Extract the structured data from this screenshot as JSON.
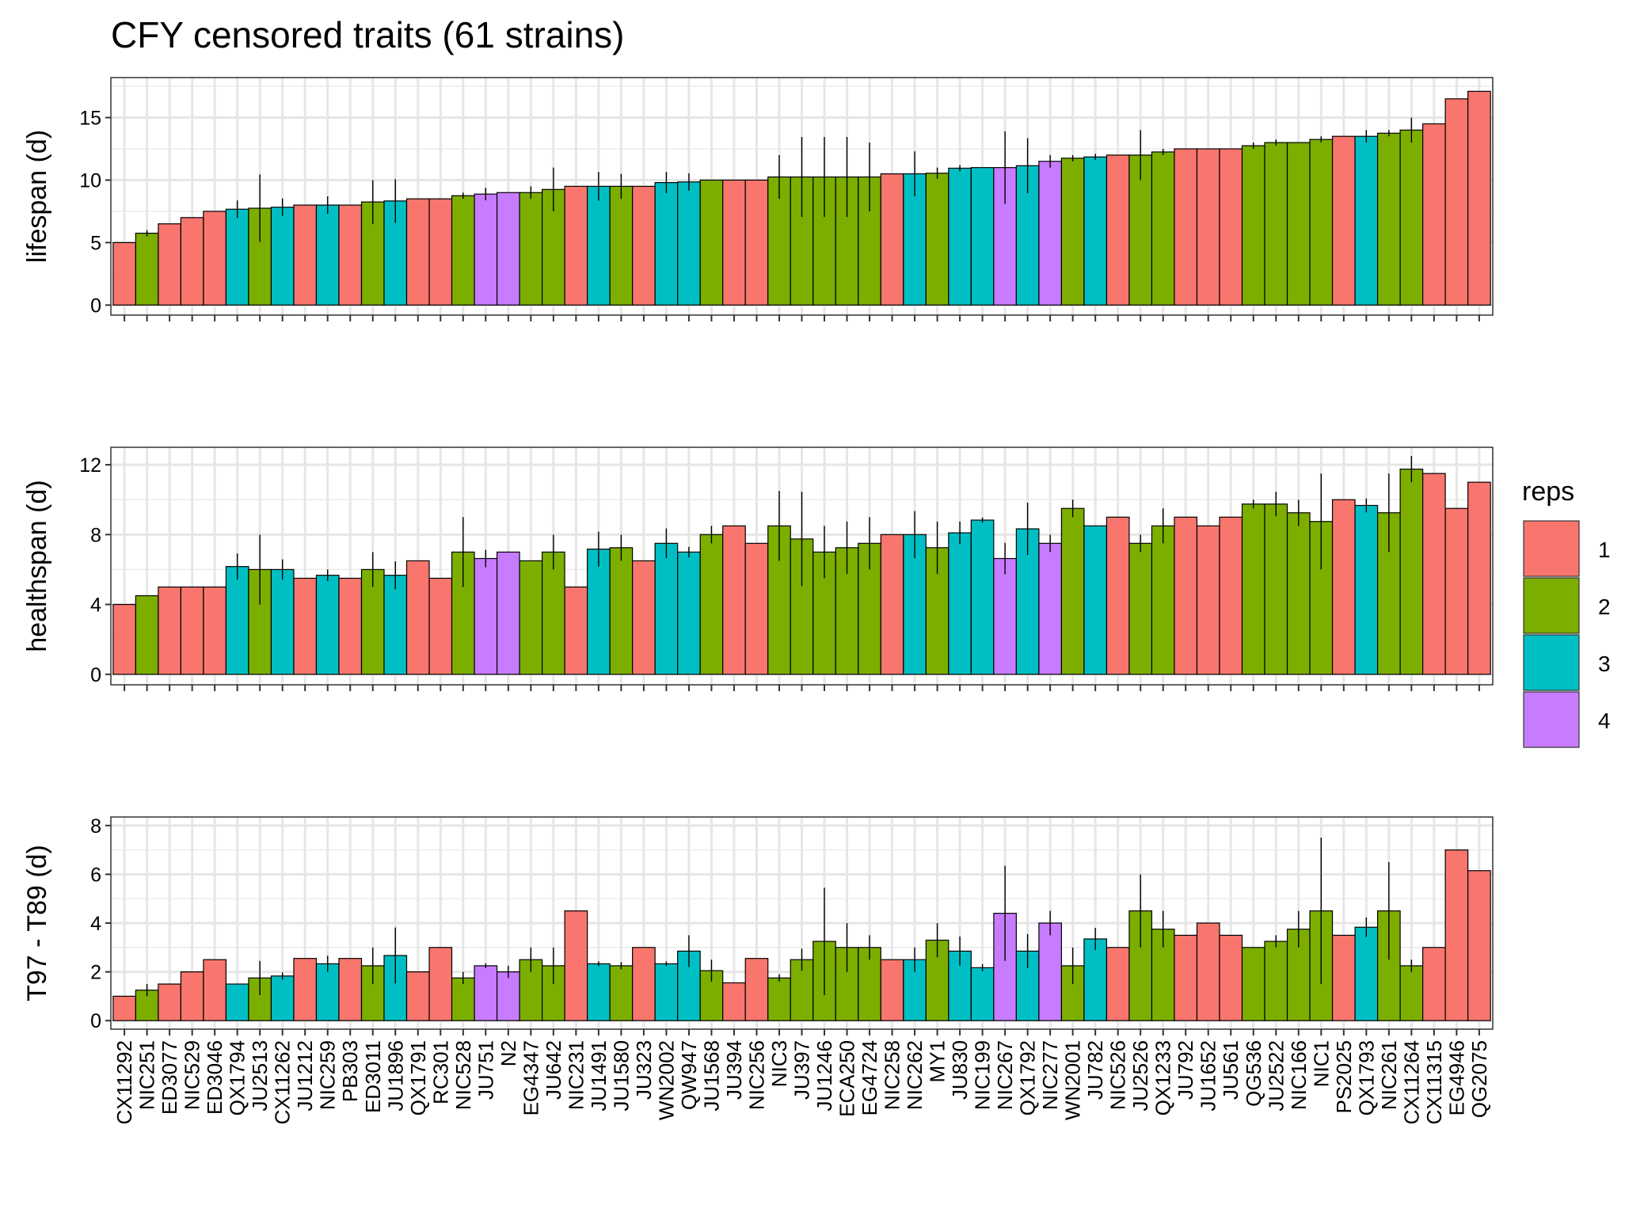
{
  "chart_data": {
    "title": "CFY censored traits (61 strains)",
    "type": "bar",
    "legend": {
      "title": "reps",
      "placement": "right",
      "entries": [
        {
          "label": "1",
          "color": "#F8766D"
        },
        {
          "label": "2",
          "color": "#7CAE00"
        },
        {
          "label": "3",
          "color": "#00BFC4"
        },
        {
          "label": "4",
          "color": "#C77CFF"
        }
      ]
    },
    "grid": true,
    "strains": [
      "CX11292",
      "NIC251",
      "ED3077",
      "NIC529",
      "ED3046",
      "QX1794",
      "JU2513",
      "CX11262",
      "JU1212",
      "NIC259",
      "PB303",
      "ED3011",
      "JU1896",
      "QX1791",
      "RC301",
      "NIC528",
      "JU751",
      "N2",
      "EG4347",
      "JU642",
      "NIC231",
      "JU1491",
      "JU1580",
      "JU323",
      "WN2002",
      "QW947",
      "JU1568",
      "JU394",
      "NIC256",
      "NIC3",
      "JU397",
      "JU1246",
      "ECA250",
      "EG4724",
      "NIC258",
      "NIC262",
      "MY1",
      "JU830",
      "NIC199",
      "NIC267",
      "QX1792",
      "NIC277",
      "WN2001",
      "JU782",
      "NIC526",
      "JU2526",
      "QX1233",
      "JU792",
      "JU1652",
      "JU561",
      "QG536",
      "JU2522",
      "NIC166",
      "NIC1",
      "PS2025",
      "QX1793",
      "NIC261",
      "CX11264",
      "CX11315",
      "EG4946",
      "QG2075"
    ],
    "lifespan_order": [
      "CX11292",
      "NIC251",
      "ED3077",
      "NIC529",
      "ED3046",
      "QX1794",
      "JU2513",
      "CX11262",
      "JU1212",
      "NIC259",
      "PB303",
      "ED3011",
      "JU1896",
      "QX1791",
      "RC301",
      "NIC528",
      "JU751",
      "N2",
      "EG4347",
      "JU642",
      "NIC231",
      "JU1491",
      "JU1580",
      "JU323",
      "WN2002",
      "QW947",
      "JU1568",
      "JU394",
      "NIC256",
      "NIC3",
      "JU397",
      "JU1246",
      "ECA250",
      "EG4724",
      "NIC258",
      "NIC262",
      "MY1",
      "JU830",
      "NIC199",
      "NIC267",
      "QX1792",
      "NIC277",
      "WN2001",
      "JU782",
      "NIC526",
      "JU2526",
      "QX1233",
      "JU792",
      "JU1652",
      "JU561",
      "QG536",
      "JU2522",
      "NIC166",
      "NIC1",
      "PS2025",
      "QX1793",
      "NIC261",
      "CX11264",
      "CX11315",
      "EG4946",
      "QG2075"
    ],
    "reps": [
      1,
      2,
      1,
      1,
      1,
      3,
      2,
      3,
      1,
      3,
      1,
      2,
      3,
      1,
      1,
      2,
      4,
      4,
      2,
      2,
      1,
      3,
      2,
      1,
      3,
      3,
      2,
      1,
      1,
      2,
      2,
      2,
      2,
      2,
      1,
      3,
      2,
      3,
      3,
      4,
      3,
      4,
      2,
      3,
      1,
      2,
      2,
      1,
      1,
      1,
      2,
      2,
      2,
      2,
      1,
      3,
      2,
      2,
      1,
      1,
      1
    ],
    "panels": [
      {
        "ylabel": "lifespan (d)",
        "ylim": [
          -0.8,
          18.2
        ],
        "yticks": [
          0,
          5,
          10,
          15
        ],
        "values": [
          5.0,
          5.75,
          6.5,
          7.0,
          7.5,
          7.67,
          7.75,
          7.83,
          8.0,
          8.0,
          8.0,
          8.25,
          8.33,
          8.5,
          8.5,
          8.75,
          8.88,
          9.0,
          9.0,
          9.25,
          9.5,
          9.5,
          9.5,
          9.5,
          9.8,
          9.85,
          10.0,
          10.0,
          10.0,
          10.25,
          10.25,
          10.25,
          10.25,
          10.25,
          10.5,
          10.5,
          10.55,
          10.95,
          11.0,
          11.0,
          11.15,
          11.5,
          11.75,
          11.85,
          12.0,
          12.0,
          12.25,
          12.5,
          12.5,
          12.5,
          12.75,
          13.0,
          13.0,
          13.25,
          13.5,
          13.5,
          13.75,
          14.0,
          14.5,
          16.5,
          17.1
        ],
        "errors": [
          0,
          0.25,
          0,
          0,
          0,
          0.7,
          2.7,
          0.7,
          0,
          0.7,
          0,
          1.75,
          1.75,
          0,
          0,
          0.25,
          0.5,
          0,
          0.5,
          1.75,
          0,
          1.15,
          1.0,
          0,
          0.85,
          0.7,
          0,
          0,
          0,
          1.75,
          3.2,
          3.2,
          3.2,
          2.75,
          0,
          1.8,
          0.45,
          0.25,
          0,
          2.9,
          2.2,
          0.5,
          0.25,
          0.25,
          0,
          2.0,
          0.25,
          0,
          0,
          0,
          0.25,
          0.25,
          0,
          0.25,
          0,
          0.5,
          0.25,
          1.0,
          0,
          0,
          0
        ]
      },
      {
        "ylabel": "healthspan (d)",
        "ylim": [
          -0.6,
          13.0
        ],
        "yticks": [
          0,
          4,
          8,
          12
        ],
        "values": [
          4.0,
          4.5,
          5.0,
          5.0,
          5.0,
          6.17,
          6.0,
          6.0,
          5.5,
          5.67,
          5.5,
          6.0,
          5.67,
          6.5,
          5.5,
          7.0,
          6.63,
          7.0,
          6.5,
          7.0,
          5.0,
          7.17,
          7.25,
          6.5,
          7.5,
          7.0,
          8.0,
          8.5,
          7.5,
          8.5,
          7.75,
          7.0,
          7.25,
          7.5,
          8.0,
          8.0,
          7.25,
          8.1,
          8.83,
          6.63,
          8.33,
          7.5,
          9.5,
          8.5,
          9.0,
          7.5,
          8.5,
          9.0,
          8.5,
          9.0,
          9.75,
          9.75,
          9.25,
          8.75,
          10.0,
          9.67,
          9.25,
          11.75,
          11.5,
          9.5,
          11.0
        ],
        "errors": [
          0,
          0,
          0,
          0,
          0,
          0.75,
          2.0,
          0.58,
          0,
          0.33,
          0,
          1.0,
          0.8,
          0,
          0,
          2.0,
          0.5,
          0,
          0,
          1.0,
          0,
          1.0,
          0.75,
          0,
          0.85,
          0.3,
          0.5,
          0,
          0,
          2.0,
          2.7,
          1.5,
          1.5,
          1.5,
          0,
          1.35,
          1.5,
          0.65,
          0.15,
          0.9,
          1.5,
          0.5,
          0.5,
          0,
          0,
          0.5,
          1.0,
          0,
          0,
          0,
          0.25,
          0.7,
          0.75,
          2.75,
          0,
          0.4,
          2.25,
          0.75,
          0,
          0,
          0
        ]
      },
      {
        "ylabel": "T97 - T89 (d)",
        "ylim": [
          -0.35,
          8.35
        ],
        "yticks": [
          0,
          2,
          4,
          6,
          8
        ],
        "values": [
          1.0,
          1.25,
          1.5,
          2.0,
          2.5,
          1.5,
          1.75,
          1.83,
          2.55,
          2.33,
          2.55,
          2.25,
          2.67,
          2.0,
          3.0,
          1.75,
          2.25,
          2.0,
          2.5,
          2.25,
          4.5,
          2.33,
          2.25,
          3.0,
          2.33,
          2.85,
          2.05,
          1.55,
          2.55,
          1.75,
          2.5,
          3.25,
          3.0,
          3.0,
          2.5,
          2.5,
          3.3,
          2.85,
          2.17,
          4.4,
          2.85,
          4.0,
          2.25,
          3.35,
          3.0,
          4.5,
          3.75,
          3.5,
          4.0,
          3.5,
          3.0,
          3.25,
          3.75,
          4.5,
          3.5,
          3.83,
          4.5,
          2.25,
          3.0,
          7.0,
          6.15
        ]
      }
    ]
  }
}
